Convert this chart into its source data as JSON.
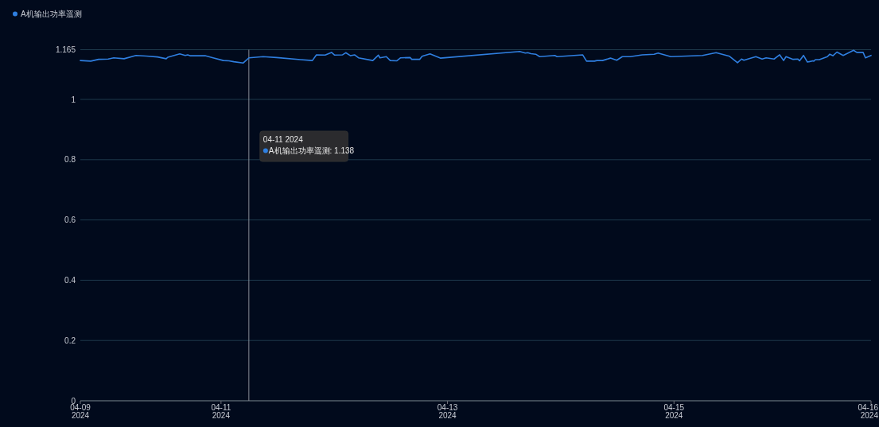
{
  "chart_data": {
    "type": "line",
    "legend": "top left",
    "grid": "y",
    "xlim": [
      "2024-04-09T18:11",
      "2024-04-16T17:46"
    ],
    "xticks": [
      {
        "value": "2024-04-09T18:11",
        "label": "04-09\n2024"
      },
      {
        "value": "2024-04-11",
        "label": "04-11\n2024"
      },
      {
        "value": "2024-04-13",
        "label": "04-13\n2024"
      },
      {
        "value": "2024-04-15",
        "label": "04-15\n2024"
      },
      {
        "value": "2024-04-16T17:46",
        "label": "04-16\n2024"
      }
    ],
    "ylim": [
      0,
      1.165
    ],
    "yticks": [
      0,
      0.2,
      0.4,
      0.6,
      0.8,
      1,
      1.165
    ],
    "ref_lines": [
      {
        "axis": "x",
        "value": "2024-04-11T05:54",
        "color": "#8a8f99"
      }
    ],
    "annotations": [
      "04-11 2024\nA机输出功率遥测: 1.138"
    ],
    "x": [
      "2024-04-09T18:11",
      "2024-04-09T20:23",
      "2024-04-09T22:04",
      "2024-04-10T00:05",
      "2024-04-10T01:16",
      "2024-04-10T03:27",
      "2024-04-10T05:59",
      "2024-04-10T08:10",
      "2024-04-10T10:32",
      "2024-04-10T12:23",
      "2024-04-10T12:43",
      "2024-04-10T15:15",
      "2024-04-10T16:25",
      "2024-04-10T16:56",
      "2024-04-10T17:26",
      "2024-04-10T20:38",
      "2024-04-10T22:19",
      "2024-04-11T00:30",
      "2024-04-11T01:41",
      "2024-04-11T02:42",
      "2024-04-11T04:43",
      "2024-04-11T05:54",
      "2024-04-11T08:56",
      "2024-04-11T11:47",
      "2024-04-11T16:51",
      "2024-04-11T19:22",
      "2024-04-11T20:13",
      "2024-04-11T22:04",
      "2024-04-11T23:25",
      "2024-04-12T00:05",
      "2024-04-12T01:46",
      "2024-04-12T02:26",
      "2024-04-12T03:27",
      "2024-04-12T04:18",
      "2024-04-12T05:08",
      "2024-04-12T08:10",
      "2024-04-12T09:21",
      "2024-04-12T09:41",
      "2024-04-12T11:02",
      "2024-04-12T11:52",
      "2024-04-12T13:13",
      "2024-04-12T14:04",
      "2024-04-12T16:05",
      "2024-04-12T16:25",
      "2024-04-12T18:06",
      "2024-04-12T18:37",
      "2024-04-12T20:18",
      "2024-04-12T22:29",
      "2024-04-13T15:19",
      "2024-04-13T16:30",
      "2024-04-13T17:01",
      "2024-04-13T17:41",
      "2024-04-13T18:42",
      "2024-04-13T19:32",
      "2024-04-13T22:44",
      "2024-04-13T23:14",
      "2024-04-14T04:38",
      "2024-04-14T05:28",
      "2024-04-14T07:09",
      "2024-04-14T07:40",
      "2024-04-14T08:51",
      "2024-04-14T10:32",
      "2024-04-14T11:52",
      "2024-04-14T13:03",
      "2024-04-14T14:44",
      "2024-04-14T17:16",
      "2024-04-14T19:47",
      "2024-04-14T20:38",
      "2024-04-14T23:20",
      "2024-04-15T06:04",
      "2024-04-15T08:56",
      "2024-04-15T11:47",
      "2024-04-15T13:28",
      "2024-04-15T14:19",
      "2024-04-15T14:49",
      "2024-04-15T17:21",
      "2024-04-15T18:41",
      "2024-04-15T19:32",
      "2024-04-15T21:13",
      "2024-04-15T22:24",
      "2024-04-15T23:14",
      "2024-04-15T23:45",
      "2024-04-16T01:16",
      "2024-04-16T02:16",
      "2024-04-16T02:37",
      "2024-04-16T03:27",
      "2024-04-16T04:17",
      "2024-04-16T05:28",
      "2024-04-16T05:38",
      "2024-04-16T05:59",
      "2024-04-16T06:49",
      "2024-04-16T08:31",
      "2024-04-16T09:01",
      "2024-04-16T09:41",
      "2024-04-16T10:32",
      "2024-04-16T11:52",
      "2024-04-16T14:04",
      "2024-04-16T14:44",
      "2024-04-16T16:05",
      "2024-04-16T16:35",
      "2024-04-16T17:46"
    ],
    "series": [
      {
        "name": "A机输出功率遥测",
        "color": "#2f7fe0",
        "values": [
          1.129,
          1.127,
          1.133,
          1.134,
          1.138,
          1.135,
          1.146,
          1.144,
          1.141,
          1.135,
          1.14,
          1.151,
          1.146,
          1.148,
          1.145,
          1.145,
          1.138,
          1.129,
          1.128,
          1.125,
          1.121,
          1.138,
          1.142,
          1.139,
          1.132,
          1.129,
          1.148,
          1.147,
          1.156,
          1.147,
          1.148,
          1.155,
          1.145,
          1.148,
          1.138,
          1.129,
          1.147,
          1.138,
          1.142,
          1.129,
          1.128,
          1.138,
          1.139,
          1.133,
          1.133,
          1.143,
          1.151,
          1.137,
          1.159,
          1.154,
          1.155,
          1.152,
          1.15,
          1.142,
          1.146,
          1.142,
          1.148,
          1.127,
          1.127,
          1.129,
          1.129,
          1.137,
          1.13,
          1.142,
          1.142,
          1.148,
          1.15,
          1.154,
          1.142,
          1.146,
          1.155,
          1.143,
          1.122,
          1.134,
          1.13,
          1.142,
          1.134,
          1.138,
          1.134,
          1.148,
          1.129,
          1.142,
          1.133,
          1.134,
          1.128,
          1.146,
          1.124,
          1.128,
          1.127,
          1.132,
          1.132,
          1.142,
          1.15,
          1.145,
          1.157,
          1.146,
          1.163,
          1.156,
          1.156,
          1.138,
          1.146
        ]
      }
    ]
  }
}
